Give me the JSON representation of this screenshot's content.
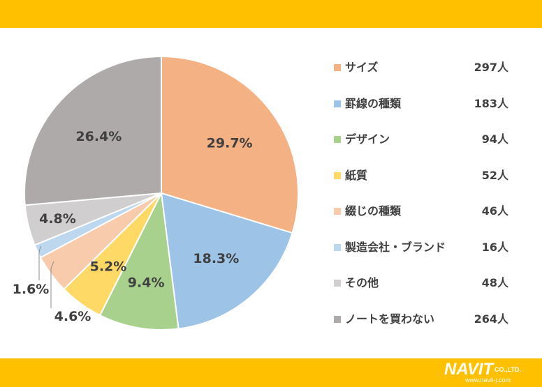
{
  "chart_data": {
    "type": "pie",
    "categories": [
      "サイズ",
      "罫線の種類",
      "デザイン",
      "紙質",
      "綴じの種類",
      "製造会社・ブランド",
      "その他",
      "ノートを買わない"
    ],
    "values": [
      297,
      183,
      94,
      52,
      46,
      16,
      48,
      264
    ],
    "value_labels": [
      "297人",
      "183人",
      "94人",
      "52人",
      "46人",
      "16人",
      "48人",
      "264人"
    ],
    "percent_labels": [
      "29.7%",
      "18.3%",
      "9.4%",
      "5.2%",
      "4.6%",
      "1.6%",
      "4.8%",
      "26.4%"
    ],
    "colors": [
      "#F4B183",
      "#9DC3E6",
      "#A9D18E",
      "#FFD966",
      "#F8CBAD",
      "#BDD7EE",
      "#D0CECE",
      "#AEAAAA"
    ],
    "legend_position": "right"
  },
  "branding": {
    "main": "NAVIT",
    "suffix": "CO.,LTD.",
    "url": "www.navit-j.com",
    "band_color": "#FFC000"
  }
}
